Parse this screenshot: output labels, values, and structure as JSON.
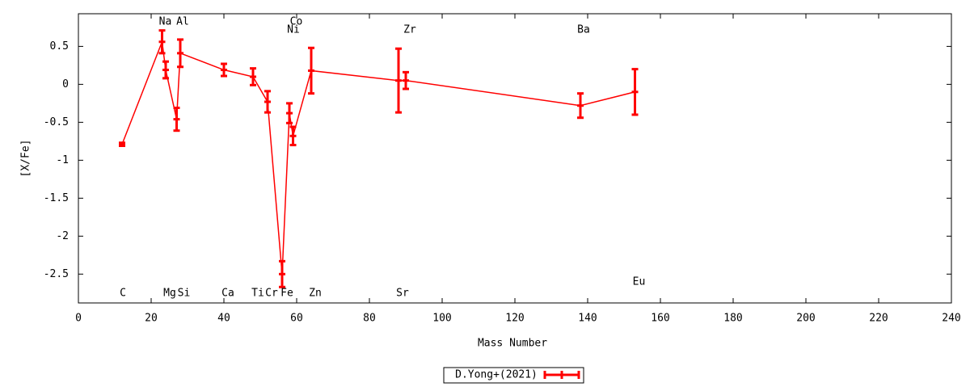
{
  "chart_data": {
    "type": "errorline",
    "xlabel": "Mass Number",
    "ylabel": "[X/Fe]",
    "xlim": [
      0,
      240
    ],
    "xticks": [
      0,
      20,
      40,
      60,
      80,
      100,
      120,
      140,
      160,
      180,
      200,
      220,
      240
    ],
    "ylim": [
      -2.88,
      0.93
    ],
    "yticks": [
      -2.5,
      -2,
      -1.5,
      -1,
      -0.5,
      0,
      0.5
    ],
    "series": [
      {
        "name": "D.Yong+(2021)",
        "color": "#ff0000",
        "x": [
          12,
          23,
          24,
          27,
          28,
          40,
          48,
          52,
          56,
          58,
          59,
          64,
          88,
          90,
          138,
          153
        ],
        "values": [
          -0.79,
          0.56,
          0.19,
          -0.46,
          0.41,
          0.19,
          0.1,
          -0.23,
          -2.5,
          -0.38,
          -0.68,
          0.18,
          0.05,
          0.05,
          -0.28,
          -0.1
        ],
        "errors": [
          0.02,
          0.15,
          0.11,
          0.15,
          0.18,
          0.08,
          0.11,
          0.14,
          0.17,
          0.13,
          0.12,
          0.3,
          0.42,
          0.11,
          0.16,
          0.3
        ],
        "labels": [
          "C",
          "Na",
          "Mg",
          "Si",
          "Al",
          "Ca",
          "Ti",
          "Cr",
          "Fe",
          "Ni",
          "Co",
          "Zn",
          "Sr",
          "Zr",
          "Ba",
          "Eu"
        ]
      }
    ]
  }
}
